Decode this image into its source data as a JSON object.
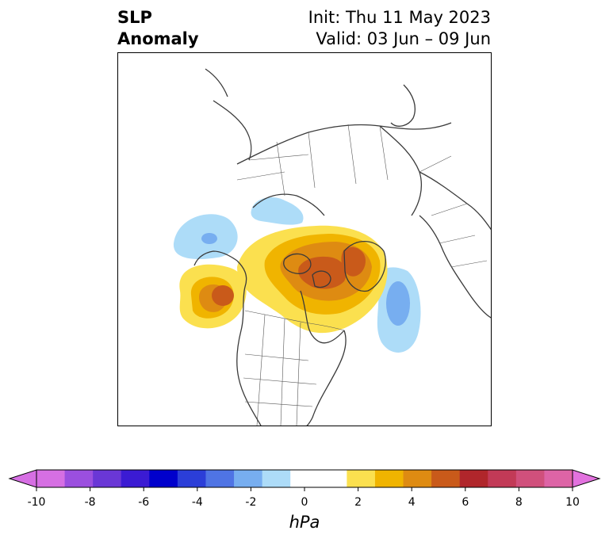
{
  "title": {
    "left_line1": "SLP",
    "left_line2": "Anomaly",
    "right_line1": "Init: Thu 11 May 2023",
    "right_line2": "Valid: 03 Jun – 09 Jun"
  },
  "map": {
    "projection": "polar stereographic, North America / Arctic",
    "anomaly_features": [
      {
        "name": "positive-anomaly-arctic",
        "sign": "positive",
        "peak_hPa": 5
      },
      {
        "name": "positive-anomaly-northeast-pacific",
        "sign": "positive",
        "peak_hPa": 4
      },
      {
        "name": "negative-anomaly-north-atlantic",
        "sign": "negative",
        "peak_hPa": -3
      },
      {
        "name": "negative-anomaly-bering",
        "sign": "negative",
        "peak_hPa": -3
      },
      {
        "name": "negative-anomaly-siberia-coast",
        "sign": "negative",
        "peak_hPa": -1
      }
    ]
  },
  "colorbar": {
    "unit": "hPa",
    "ticks": [
      "-10",
      "-8",
      "-6",
      "-4",
      "-2",
      "0",
      "2",
      "4",
      "6",
      "8",
      "10"
    ],
    "colors": [
      "#d66fe3",
      "#9b4fdf",
      "#6a37d6",
      "#3b1bd3",
      "#0000cc",
      "#2b3ed8",
      "#4f74e4",
      "#77aef0",
      "#addcf8",
      "#ffffff",
      "#ffffff",
      "#fbe04f",
      "#f0b400",
      "#de8b12",
      "#c95a1a",
      "#b0262b",
      "#c23a57",
      "#d0507c",
      "#dd64a6"
    ],
    "extend_min_color": "#d66fe3",
    "extend_max_color": "#e272de"
  }
}
